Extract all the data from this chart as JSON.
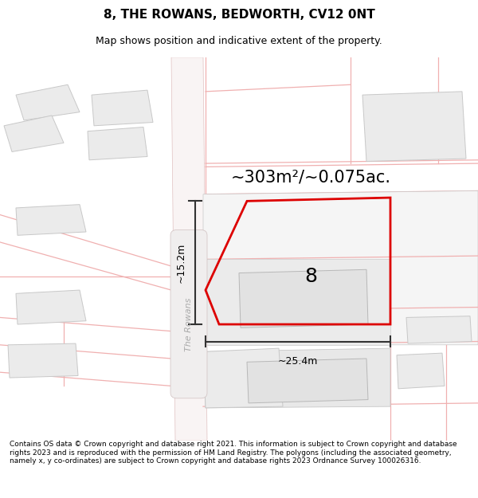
{
  "title": "8, THE ROWANS, BEDWORTH, CV12 0NT",
  "subtitle": "Map shows position and indicative extent of the property.",
  "footer": "Contains OS data © Crown copyright and database right 2021. This information is subject to Crown copyright and database rights 2023 and is reproduced with the permission of HM Land Registry. The polygons (including the associated geometry, namely x, y co-ordinates) are subject to Crown copyright and database rights 2023 Ordnance Survey 100026316.",
  "bg_color": "#ffffff",
  "map_bg": "#ffffff",
  "road_line_color": "#f0b0b0",
  "building_fill": "#ebebeb",
  "building_edge": "#c8c8c8",
  "road_fill": "#f8f0f0",
  "highlight_color": "#dd0000",
  "highlight_lw": 2.0,
  "area_label": "~303m²/~0.075ac.",
  "area_label_fs": 15,
  "number_label": "8",
  "number_label_fs": 18,
  "width_label": "~25.4m",
  "height_label": "~15.2m",
  "street_label": "The Rowans",
  "title_fontsize": 11,
  "subtitle_fontsize": 9,
  "footer_fontsize": 6.5
}
